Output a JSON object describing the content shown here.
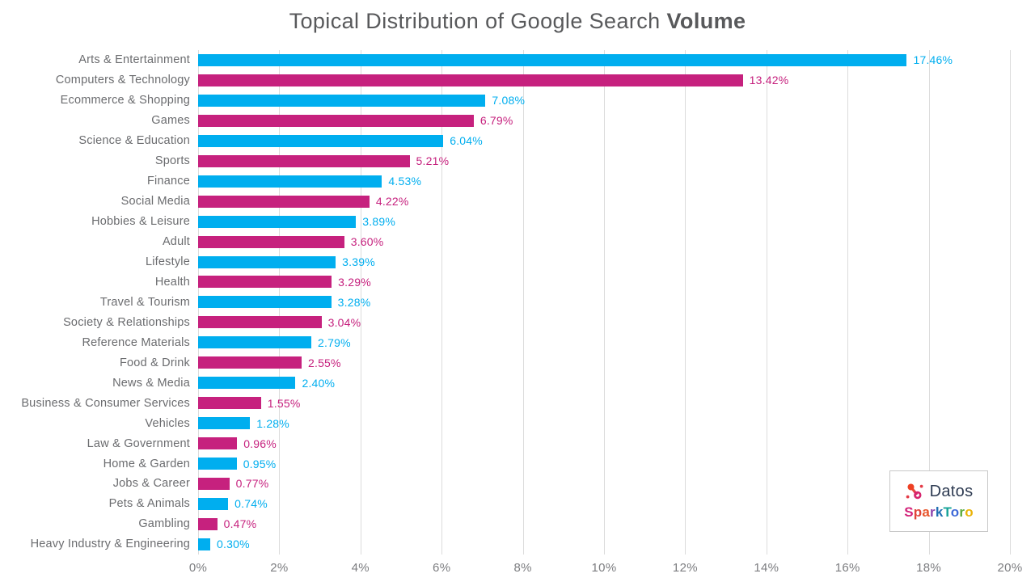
{
  "title": {
    "text_regular": "Topical Distribution of Google Search",
    "text_bold": "Volume"
  },
  "chart_data": {
    "type": "bar",
    "orientation": "horizontal",
    "title": "Topical Distribution of Google Search Volume",
    "categories": [
      "Arts & Entertainment",
      "Computers & Technology",
      "Ecommerce & Shopping",
      "Games",
      "Science & Education",
      "Sports",
      "Finance",
      "Social Media",
      "Hobbies & Leisure",
      "Adult",
      "Lifestyle",
      "Health",
      "Travel & Tourism",
      "Society & Relationships",
      "Reference Materials",
      "Food & Drink",
      "News & Media",
      "Business & Consumer Services",
      "Vehicles",
      "Law & Government",
      "Home & Garden",
      "Jobs & Career",
      "Pets & Animals",
      "Gambling",
      "Heavy Industry & Engineering"
    ],
    "values": [
      17.46,
      13.42,
      7.08,
      6.79,
      6.04,
      5.21,
      4.53,
      4.22,
      3.89,
      3.6,
      3.39,
      3.29,
      3.28,
      3.04,
      2.79,
      2.55,
      2.4,
      1.55,
      1.28,
      0.96,
      0.95,
      0.77,
      0.74,
      0.47,
      0.3
    ],
    "value_labels": [
      "17.46%",
      "13.42%",
      "7.08%",
      "6.79%",
      "6.04%",
      "5.21%",
      "4.53%",
      "4.22%",
      "3.89%",
      "3.60%",
      "3.39%",
      "3.29%",
      "3.28%",
      "3.04%",
      "2.79%",
      "2.55%",
      "2.40%",
      "1.55%",
      "1.28%",
      "0.96%",
      "0.95%",
      "0.77%",
      "0.74%",
      "0.47%",
      "0.30%"
    ],
    "xlabel": "",
    "ylabel": "",
    "xlim": [
      0,
      20
    ],
    "x_ticks": [
      "0%",
      "2%",
      "4%",
      "6%",
      "8%",
      "10%",
      "12%",
      "14%",
      "16%",
      "18%",
      "20%"
    ],
    "grid": "vertical",
    "legend": "none",
    "bar_color_odd_rows": "#00aeef",
    "bar_color_even_rows": "#c6217e"
  },
  "colors": {
    "blue": "#00aeef",
    "magenta": "#c6217e",
    "title_text": "#58595b",
    "category_label": "#6b6c6f",
    "axis_label": "#7c7d80",
    "gridline": "#dcdcdc",
    "background": "#ffffff",
    "logo_border": "#c8c8c8",
    "datos_text_color": "#2e3b52"
  },
  "logo": {
    "datos_label": "Datos",
    "datos_icon": "network-nodes-icon",
    "sparktoro_letters": [
      {
        "ch": "S",
        "color": "#d2237a"
      },
      {
        "ch": "p",
        "color": "#e04438"
      },
      {
        "ch": "a",
        "color": "#e8562c"
      },
      {
        "ch": "r",
        "color": "#8e44ad"
      },
      {
        "ch": "k",
        "color": "#1f6fb2"
      },
      {
        "ch": "T",
        "color": "#17a398"
      },
      {
        "ch": "o",
        "color": "#3f6ad8"
      },
      {
        "ch": "r",
        "color": "#5aaa3c"
      },
      {
        "ch": "o",
        "color": "#eab308"
      }
    ]
  }
}
